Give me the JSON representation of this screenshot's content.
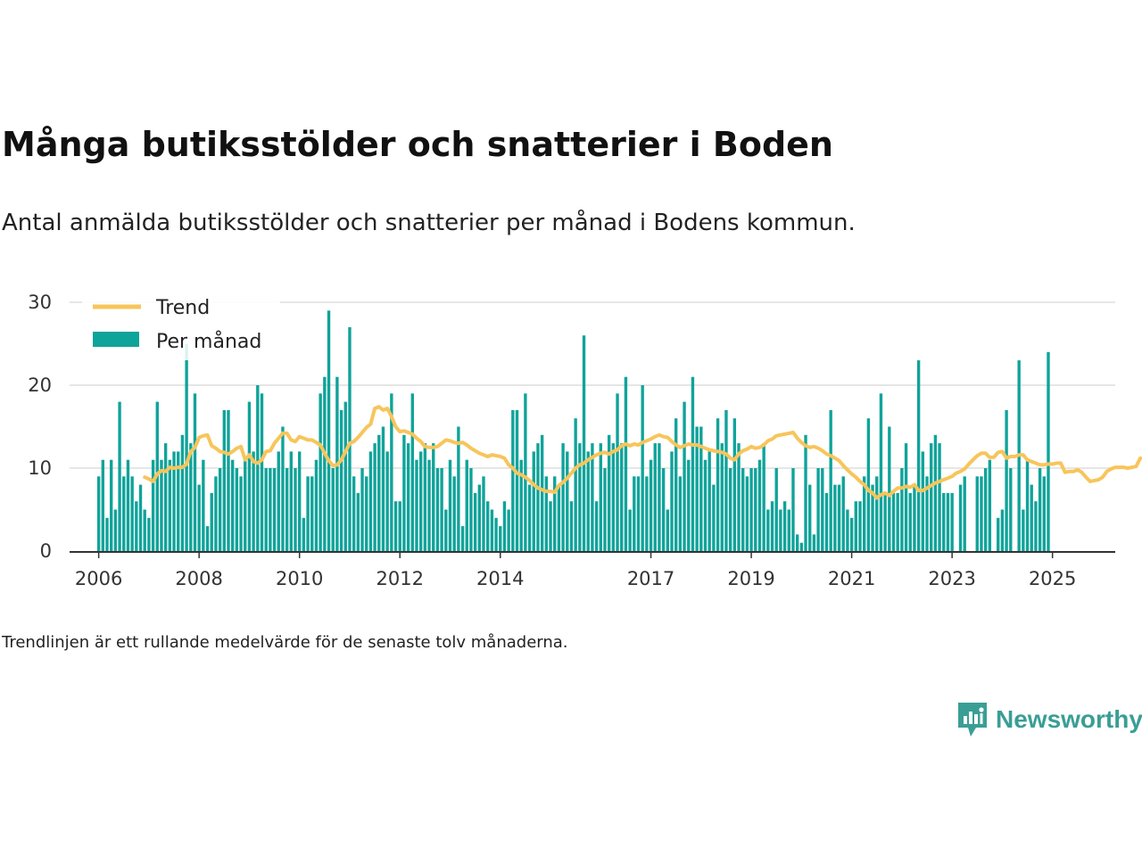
{
  "title": "Många butiksstölder och snatterier i Boden",
  "subtitle": "Antal anmälda butiksstölder och snatterier per månad i Bodens kommun.",
  "footnote": "Trendlinjen är ett rullande medelvärde för de senaste tolv månaderna.",
  "brand": {
    "name": "Newsworthy",
    "icon": "newsworthy-logo-icon",
    "color": "#3a9e95"
  },
  "colors": {
    "bars": "#10a39a",
    "trend": "#f7c55b",
    "grid": "#dddddd",
    "axis": "#333333"
  },
  "chart_data": {
    "type": "bar",
    "title": "Många butiksstölder och snatterier i Boden",
    "xlabel": "",
    "ylabel": "",
    "ylim": [
      0,
      30
    ],
    "yticks": [
      0,
      10,
      20,
      30
    ],
    "xlim": [
      2005.42,
      2026.25
    ],
    "xticks": [
      {
        "label": "2006",
        "x": 2006.0
      },
      {
        "label": "2008",
        "x": 2008.0
      },
      {
        "label": "2010",
        "x": 2010.0
      },
      {
        "label": "2012",
        "x": 2012.0
      },
      {
        "label": "2014",
        "x": 2014.0
      },
      {
        "label": "2017",
        "x": 2017.0
      },
      {
        "label": "2019",
        "x": 2019.0
      },
      {
        "label": "2021",
        "x": 2021.0
      },
      {
        "label": "2023",
        "x": 2023.0
      },
      {
        "label": "2025",
        "x": 2025.0
      }
    ],
    "grid": true,
    "legend": {
      "position": "top-left",
      "entries": [
        "Trend",
        "Per månad"
      ]
    },
    "series": [
      {
        "name": "Per månad",
        "type": "bar",
        "start": "2006-01",
        "values": [
          9,
          11,
          4,
          11,
          5,
          18,
          9,
          11,
          9,
          6,
          8,
          5,
          4,
          11,
          18,
          11,
          13,
          11,
          12,
          12,
          14,
          25,
          13,
          19,
          8,
          11,
          3,
          7,
          9,
          10,
          17,
          17,
          11,
          10,
          9,
          11,
          18,
          12,
          20,
          19,
          10,
          10,
          10,
          12,
          15,
          10,
          12,
          10,
          12,
          4,
          9,
          9,
          11,
          19,
          21,
          29,
          10,
          21,
          17,
          18,
          27,
          9,
          7,
          10,
          9,
          12,
          13,
          14,
          15,
          12,
          19,
          6,
          6,
          14,
          13,
          19,
          11,
          12,
          13,
          11,
          13,
          10,
          10,
          5,
          11,
          9,
          15,
          3,
          11,
          10,
          7,
          8,
          9,
          6,
          5,
          4,
          3,
          6,
          5,
          17,
          17,
          11,
          19,
          8,
          12,
          13,
          14,
          9,
          6,
          9,
          8,
          13,
          12,
          6,
          16,
          13,
          26,
          12,
          13,
          6,
          13,
          10,
          14,
          13,
          19,
          13,
          21,
          5,
          9,
          9,
          20,
          9,
          11,
          13,
          13,
          10,
          5,
          12,
          16,
          9,
          18,
          11,
          21,
          15,
          15,
          11,
          12,
          8,
          16,
          13,
          17,
          10,
          16,
          13,
          10,
          9,
          10,
          10,
          11,
          13,
          5,
          6,
          10,
          5,
          6,
          5,
          10,
          2,
          1,
          14,
          8,
          2,
          10,
          10,
          7,
          17,
          8,
          8,
          9,
          5,
          4,
          6,
          6,
          9,
          16,
          8,
          9,
          19,
          7,
          15,
          7,
          7,
          10,
          13,
          7,
          8,
          23,
          12,
          9,
          13,
          14,
          13,
          7,
          7,
          7,
          0,
          8,
          9,
          0,
          0,
          9,
          9,
          10,
          11,
          0,
          4,
          5,
          17,
          10,
          0,
          23,
          5,
          11,
          8,
          6,
          10,
          9,
          24
        ]
      },
      {
        "name": "Trend",
        "type": "line",
        "start": "2006-12",
        "values": [
          8.9,
          8.7,
          8.4,
          9.3,
          9.7,
          9.6,
          10.1,
          10.0,
          10.1,
          10.1,
          10.5,
          12.0,
          12.5,
          13.7,
          13.9,
          14.0,
          12.7,
          12.4,
          12.0,
          11.9,
          11.7,
          12.0,
          12.4,
          12.6,
          11.0,
          11.6,
          10.8,
          10.6,
          11.0,
          12.0,
          12.1,
          13.0,
          13.6,
          14.2,
          14.2,
          13.4,
          13.2,
          13.8,
          13.6,
          13.4,
          13.4,
          13.1,
          12.8,
          11.8,
          10.9,
          10.3,
          10.4,
          11.0,
          12.0,
          13.0,
          13.2,
          13.7,
          14.3,
          14.9,
          15.3,
          17.2,
          17.4,
          17.0,
          17.2,
          16.2,
          15.0,
          14.4,
          14.5,
          14.3,
          14.1,
          13.6,
          13.2,
          12.6,
          12.5,
          12.5,
          12.6,
          13.0,
          13.4,
          13.3,
          13.1,
          13.0,
          13.1,
          12.8,
          12.4,
          12.1,
          11.8,
          11.6,
          11.4,
          11.6,
          11.5,
          11.4,
          11.2,
          10.4,
          10.0,
          9.4,
          9.2,
          8.9,
          8.5,
          8.0,
          7.6,
          7.4,
          7.2,
          7.2,
          7.1,
          7.9,
          8.3,
          8.8,
          9.4,
          10.0,
          10.4,
          10.6,
          11.0,
          11.3,
          11.6,
          11.8,
          11.9,
          11.7,
          12.0,
          12.2,
          12.7,
          12.9,
          12.7,
          12.9,
          12.8,
          13.1,
          13.3,
          13.5,
          13.8,
          14.0,
          13.8,
          13.7,
          13.2,
          12.8,
          12.5,
          12.7,
          12.9,
          12.8,
          12.8,
          12.6,
          12.4,
          12.2,
          12.1,
          12.0,
          11.9,
          11.7,
          11.2,
          11.0,
          11.7,
          12.1,
          12.3,
          12.6,
          12.4,
          12.5,
          12.8,
          13.3,
          13.5,
          13.9,
          14.0,
          14.1,
          14.2,
          14.3,
          13.6,
          13.1,
          12.7,
          12.5,
          12.6,
          12.4,
          12.1,
          11.7,
          11.5,
          11.2,
          10.9,
          10.3,
          9.8,
          9.3,
          8.9,
          8.4,
          8.0,
          7.3,
          7.0,
          6.4,
          6.8,
          7.0,
          6.7,
          7.2,
          7.6,
          7.6,
          7.8,
          7.7,
          8.0,
          7.3,
          7.3,
          7.6,
          7.9,
          8.2,
          8.4,
          8.6,
          8.8,
          9.0,
          9.4,
          9.6,
          9.9,
          10.5,
          11.0,
          11.5,
          11.8,
          11.8,
          11.3,
          11.3,
          11.9,
          12.0,
          11.2,
          11.4,
          11.4,
          11.6,
          11.6,
          11.0,
          10.8,
          10.6,
          10.4,
          10.4,
          10.5,
          10.5,
          10.6,
          10.6,
          9.5,
          9.6,
          9.6,
          9.8,
          9.5,
          8.9,
          8.4,
          8.5,
          8.6,
          8.9,
          9.6,
          9.9,
          10.1,
          10.1,
          10.1,
          10.0,
          10.1,
          10.2,
          11.2
        ]
      }
    ]
  }
}
